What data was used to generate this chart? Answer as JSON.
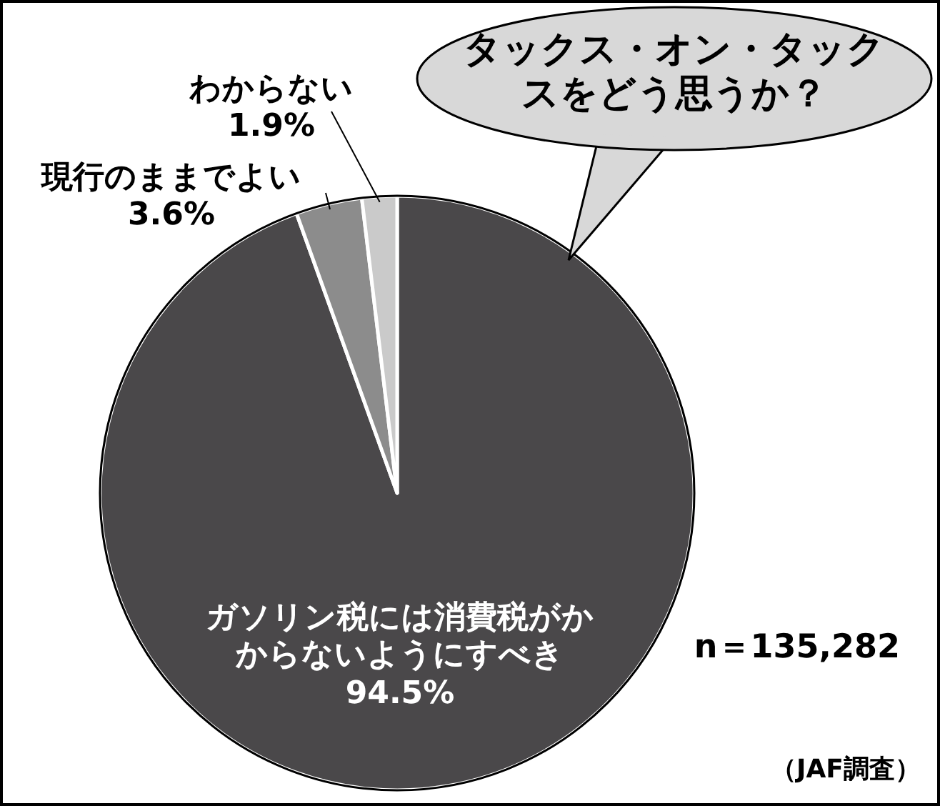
{
  "chart_data": {
    "type": "pie",
    "title": "タックス・オン・タックスをどう思うか？",
    "categories": [
      "ガソリン税には消費税がかからないようにすべき",
      "現行のままでよい",
      "わからない"
    ],
    "values": [
      94.5,
      3.6,
      1.9
    ],
    "value_labels": [
      "94.5%",
      "3.6%",
      "1.9%"
    ],
    "colors": [
      "#4a484a",
      "#8c8c8c",
      "#cacaca"
    ],
    "annotations": [
      "n＝135,282",
      "（JAF調査）"
    ]
  }
}
